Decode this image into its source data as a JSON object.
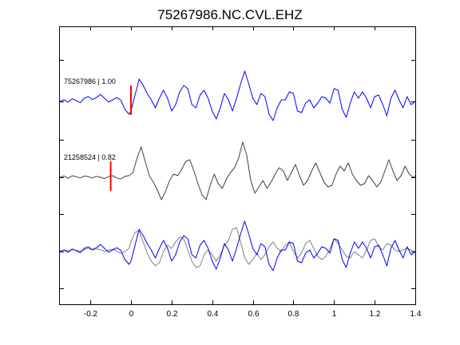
{
  "chart_data": {
    "type": "line",
    "title": "75267986.NC.CVL.EHZ",
    "xlabel": "",
    "ylabel": "",
    "xlim": [
      -0.35,
      1.4
    ],
    "xticks": [
      -0.2,
      0,
      0.2,
      0.4,
      0.6,
      0.8,
      1,
      1.2,
      1.4
    ],
    "xtick_labels": [
      "-0.2",
      "0",
      "0.2",
      "0.4",
      "0.6",
      "0.8",
      "1",
      "1.2",
      "1.4"
    ],
    "grid": false,
    "colors": {
      "master": "#0000ff",
      "slave": "#404040",
      "slave_overlay": "#808080",
      "pick": "#ff0000"
    },
    "panels": [
      {
        "label": "75267986 | 1.00",
        "pick_time": 0.0,
        "traces": [
          {
            "role": "master",
            "x": [
              -0.35,
              -0.33,
              -0.31,
              -0.29,
              -0.27,
              -0.25,
              -0.23,
              -0.21,
              -0.19,
              -0.17,
              -0.15,
              -0.13,
              -0.11,
              -0.09,
              -0.07,
              -0.05,
              -0.03,
              -0.01,
              0.0,
              0.02,
              0.04,
              0.06,
              0.08,
              0.1,
              0.12,
              0.14,
              0.16,
              0.18,
              0.2,
              0.22,
              0.24,
              0.26,
              0.28,
              0.3,
              0.32,
              0.34,
              0.36,
              0.38,
              0.4,
              0.42,
              0.44,
              0.46,
              0.48,
              0.5,
              0.52,
              0.54,
              0.56,
              0.58,
              0.6,
              0.62,
              0.64,
              0.66,
              0.68,
              0.7,
              0.72,
              0.74,
              0.76,
              0.78,
              0.8,
              0.82,
              0.84,
              0.86,
              0.88,
              0.9,
              0.92,
              0.94,
              0.96,
              0.98,
              1.0,
              1.02,
              1.04,
              1.06,
              1.08,
              1.1,
              1.12,
              1.14,
              1.16,
              1.18,
              1.2,
              1.22,
              1.24,
              1.26,
              1.28,
              1.3,
              1.32,
              1.34,
              1.36,
              1.38,
              1.4
            ],
            "y": [
              0.0,
              0.05,
              -0.02,
              0.08,
              0.03,
              -0.04,
              0.1,
              0.15,
              0.06,
              0.12,
              0.22,
              0.1,
              -0.02,
              0.05,
              0.12,
              0.04,
              -0.25,
              -0.4,
              -0.3,
              0.2,
              0.7,
              0.5,
              0.25,
              0.05,
              -0.2,
              0.1,
              0.35,
              0.1,
              -0.3,
              -0.1,
              0.3,
              0.5,
              0.4,
              -0.1,
              -0.2,
              0.2,
              0.35,
              0.1,
              -0.3,
              -0.55,
              -0.2,
              0.25,
              0.05,
              -0.3,
              0.1,
              0.55,
              0.95,
              0.55,
              0.1,
              -0.1,
              0.25,
              0.15,
              -0.4,
              -0.6,
              -0.2,
              0.05,
              0.05,
              0.3,
              0.25,
              -0.3,
              -0.35,
              -0.05,
              0.05,
              -0.2,
              -0.05,
              0.15,
              0.1,
              -0.05,
              0.4,
              0.35,
              -0.25,
              -0.5,
              -0.05,
              0.3,
              0.1,
              0.3,
              0.1,
              -0.2,
              0.15,
              0.2,
              -0.1,
              -0.45,
              0.1,
              0.35,
              0.05,
              -0.2,
              0.15,
              -0.1,
              0.0
            ]
          }
        ]
      },
      {
        "label": "21258524 | 0.82",
        "pick_time": -0.1,
        "traces": [
          {
            "role": "slave",
            "x": [
              -0.35,
              -0.33,
              -0.31,
              -0.29,
              -0.27,
              -0.25,
              -0.23,
              -0.21,
              -0.19,
              -0.17,
              -0.15,
              -0.13,
              -0.11,
              -0.09,
              -0.07,
              -0.05,
              -0.03,
              -0.01,
              0.01,
              0.03,
              0.05,
              0.07,
              0.09,
              0.11,
              0.13,
              0.15,
              0.17,
              0.19,
              0.21,
              0.23,
              0.25,
              0.27,
              0.29,
              0.31,
              0.33,
              0.35,
              0.37,
              0.39,
              0.41,
              0.43,
              0.45,
              0.47,
              0.49,
              0.51,
              0.53,
              0.55,
              0.57,
              0.59,
              0.61,
              0.63,
              0.65,
              0.67,
              0.69,
              0.71,
              0.73,
              0.75,
              0.77,
              0.79,
              0.81,
              0.83,
              0.85,
              0.87,
              0.89,
              0.91,
              0.93,
              0.95,
              0.97,
              0.99,
              1.01,
              1.03,
              1.05,
              1.07,
              1.09,
              1.11,
              1.13,
              1.15,
              1.17,
              1.19,
              1.21,
              1.23,
              1.25,
              1.27,
              1.29,
              1.31,
              1.33,
              1.35,
              1.37,
              1.39,
              1.4
            ],
            "y": [
              0.0,
              0.04,
              -0.03,
              0.05,
              0.02,
              -0.02,
              0.04,
              0.02,
              -0.02,
              0.03,
              0.0,
              -0.04,
              0.02,
              0.05,
              -0.02,
              -0.05,
              0.03,
              0.05,
              0.15,
              0.6,
              0.95,
              0.5,
              0.05,
              -0.15,
              -0.4,
              -0.7,
              -0.45,
              -0.1,
              0.1,
              0.05,
              0.25,
              0.5,
              0.55,
              0.2,
              -0.2,
              -0.55,
              -0.7,
              -0.25,
              0.1,
              -0.2,
              -0.35,
              -0.05,
              0.15,
              0.3,
              0.6,
              1.1,
              0.7,
              -0.1,
              -0.5,
              -0.3,
              -0.1,
              -0.35,
              -0.15,
              0.1,
              0.3,
              0.2,
              -0.1,
              0.15,
              0.4,
              0.05,
              -0.25,
              -0.1,
              0.2,
              0.45,
              0.15,
              -0.15,
              -0.3,
              -0.25,
              0.1,
              0.35,
              0.2,
              0.45,
              0.1,
              -0.1,
              -0.25,
              -0.2,
              0.05,
              -0.1,
              -0.3,
              -0.15,
              0.2,
              0.55,
              0.2,
              -0.1,
              0.05,
              0.35,
              0.1,
              0.0,
              0.05
            ]
          }
        ]
      },
      {
        "label": "",
        "pick_time": null,
        "traces": [
          {
            "role": "slave_overlay",
            "x": [
              -0.35,
              -0.33,
              -0.31,
              -0.29,
              -0.27,
              -0.25,
              -0.23,
              -0.21,
              -0.19,
              -0.17,
              -0.15,
              -0.13,
              -0.11,
              -0.09,
              -0.07,
              -0.05,
              -0.03,
              -0.01,
              0.0,
              0.02,
              0.04,
              0.06,
              0.08,
              0.1,
              0.12,
              0.14,
              0.16,
              0.18,
              0.2,
              0.22,
              0.24,
              0.26,
              0.28,
              0.3,
              0.32,
              0.34,
              0.36,
              0.38,
              0.4,
              0.42,
              0.44,
              0.46,
              0.48,
              0.5,
              0.52,
              0.54,
              0.56,
              0.58,
              0.6,
              0.62,
              0.64,
              0.66,
              0.68,
              0.7,
              0.72,
              0.74,
              0.76,
              0.78,
              0.8,
              0.82,
              0.84,
              0.86,
              0.88,
              0.9,
              0.92,
              0.94,
              0.96,
              0.98,
              1.0,
              1.02,
              1.04,
              1.06,
              1.08,
              1.1,
              1.12,
              1.14,
              1.16,
              1.18,
              1.2,
              1.22,
              1.24,
              1.26,
              1.28,
              1.3,
              1.32,
              1.34,
              1.36,
              1.38,
              1.4
            ],
            "y": [
              0.0,
              0.05,
              0.02,
              0.06,
              0.04,
              0.01,
              0.06,
              0.1,
              0.05,
              0.08,
              0.06,
              0.0,
              0.05,
              0.08,
              0.02,
              -0.06,
              0.0,
              0.1,
              0.3,
              0.6,
              0.65,
              0.3,
              -0.05,
              -0.3,
              -0.45,
              -0.35,
              0.0,
              0.2,
              0.1,
              0.3,
              0.45,
              0.4,
              0.05,
              -0.3,
              -0.5,
              -0.45,
              -0.1,
              0.05,
              -0.1,
              -0.3,
              -0.1,
              0.2,
              0.35,
              0.7,
              0.75,
              0.3,
              -0.2,
              -0.4,
              -0.25,
              -0.05,
              -0.25,
              -0.1,
              0.15,
              0.3,
              0.1,
              0.0,
              0.2,
              0.3,
              0.0,
              -0.2,
              -0.05,
              0.25,
              0.35,
              0.1,
              -0.15,
              -0.25,
              -0.15,
              0.1,
              0.4,
              0.25,
              0.05,
              -0.15,
              -0.2,
              0.0,
              -0.1,
              -0.2,
              0.05,
              0.35,
              0.4,
              0.15,
              0.05,
              0.25,
              0.2,
              0.05,
              0.0,
              0.05,
              0.1,
              0.05,
              0.0
            ]
          },
          {
            "role": "master",
            "x": [
              -0.35,
              -0.33,
              -0.31,
              -0.29,
              -0.27,
              -0.25,
              -0.23,
              -0.21,
              -0.19,
              -0.17,
              -0.15,
              -0.13,
              -0.11,
              -0.09,
              -0.07,
              -0.05,
              -0.03,
              -0.01,
              0.0,
              0.02,
              0.04,
              0.06,
              0.08,
              0.1,
              0.12,
              0.14,
              0.16,
              0.18,
              0.2,
              0.22,
              0.24,
              0.26,
              0.28,
              0.3,
              0.32,
              0.34,
              0.36,
              0.38,
              0.4,
              0.42,
              0.44,
              0.46,
              0.48,
              0.5,
              0.52,
              0.54,
              0.56,
              0.58,
              0.6,
              0.62,
              0.64,
              0.66,
              0.68,
              0.7,
              0.72,
              0.74,
              0.76,
              0.78,
              0.8,
              0.82,
              0.84,
              0.86,
              0.88,
              0.9,
              0.92,
              0.94,
              0.96,
              0.98,
              1.0,
              1.02,
              1.04,
              1.06,
              1.08,
              1.1,
              1.12,
              1.14,
              1.16,
              1.18,
              1.2,
              1.22,
              1.24,
              1.26,
              1.28,
              1.3,
              1.32,
              1.34,
              1.36,
              1.38,
              1.4
            ],
            "y": [
              0.0,
              0.05,
              -0.02,
              0.08,
              0.03,
              -0.04,
              0.1,
              0.15,
              0.06,
              0.12,
              0.22,
              0.1,
              -0.02,
              0.05,
              0.12,
              0.04,
              -0.25,
              -0.4,
              -0.3,
              0.2,
              0.7,
              0.5,
              0.25,
              0.05,
              -0.2,
              0.1,
              0.35,
              0.1,
              -0.3,
              -0.1,
              0.3,
              0.5,
              0.4,
              -0.1,
              -0.2,
              0.2,
              0.35,
              0.1,
              -0.3,
              -0.55,
              -0.2,
              0.25,
              0.05,
              -0.3,
              0.1,
              0.55,
              0.95,
              0.55,
              0.1,
              -0.1,
              0.25,
              0.15,
              -0.4,
              -0.6,
              -0.2,
              0.05,
              0.05,
              0.3,
              0.25,
              -0.3,
              -0.35,
              -0.05,
              0.05,
              -0.2,
              -0.05,
              0.15,
              0.1,
              -0.05,
              0.4,
              0.35,
              -0.25,
              -0.5,
              -0.05,
              0.3,
              0.1,
              0.3,
              0.1,
              -0.2,
              0.15,
              0.2,
              -0.1,
              -0.45,
              0.1,
              0.35,
              0.05,
              -0.2,
              0.15,
              -0.1,
              0.0
            ]
          }
        ]
      }
    ]
  }
}
